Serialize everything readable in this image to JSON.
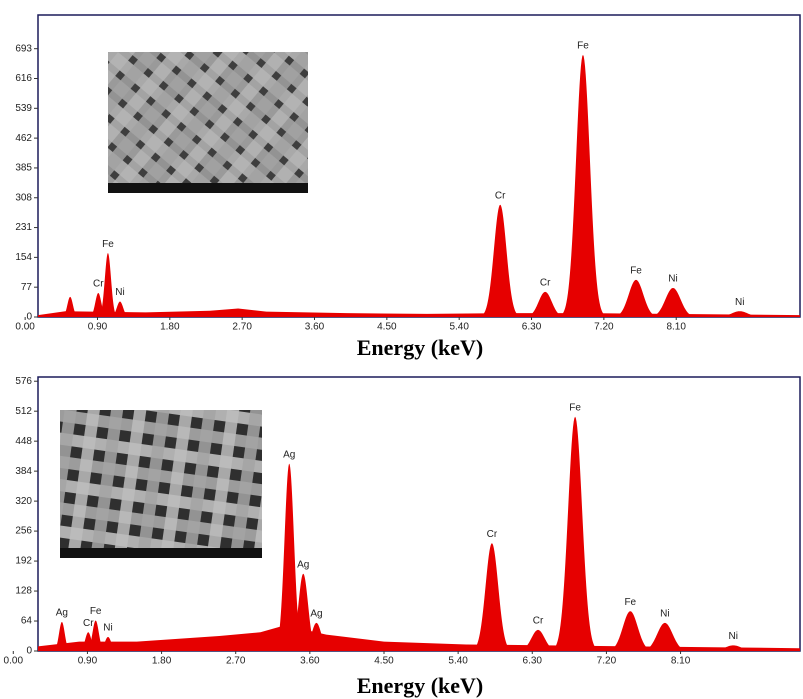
{
  "chart_data": [
    {
      "type": "spectrum",
      "x_label": "Energy (keV)",
      "color": "#e60000",
      "xlim": [
        0.16,
        9.64
      ],
      "ylim": [
        0,
        780
      ],
      "xticks": [
        {
          "value": 0,
          "label": "0.00"
        },
        {
          "value": 0.9,
          "label": "0.90"
        },
        {
          "value": 1.8,
          "label": "1.80"
        },
        {
          "value": 2.7,
          "label": "2.70"
        },
        {
          "value": 3.6,
          "label": "3.60"
        },
        {
          "value": 4.5,
          "label": "4.50"
        },
        {
          "value": 5.4,
          "label": "5.40"
        },
        {
          "value": 6.3,
          "label": "6.30"
        },
        {
          "value": 7.2,
          "label": "7.20"
        },
        {
          "value": 8.1,
          "label": "8.10"
        }
      ],
      "yticks": [
        0,
        77,
        154,
        231,
        308,
        385,
        462,
        539,
        616,
        693
      ],
      "background": {
        "x": [
          0.16,
          0.5,
          1.5,
          2.3,
          2.65,
          3.0,
          4.0,
          5.0,
          6.0,
          7.0,
          8.0,
          9.0,
          9.64
        ],
        "values": [
          5,
          15,
          12,
          16,
          22,
          14,
          10,
          8,
          10,
          10,
          8,
          6,
          5
        ]
      },
      "peaks": [
        {
          "energy": 0.56,
          "counts": 52
        },
        {
          "energy": 0.91,
          "counts": 62,
          "label": "Cr"
        },
        {
          "energy": 1.03,
          "counts": 165,
          "label": "Fe"
        },
        {
          "energy": 1.18,
          "counts": 40,
          "label": "Ni"
        },
        {
          "energy": 5.91,
          "counts": 290,
          "label": "Cr"
        },
        {
          "energy": 6.47,
          "counts": 65,
          "label": "Cr"
        },
        {
          "energy": 6.94,
          "counts": 677,
          "label": "Fe"
        },
        {
          "energy": 7.6,
          "counts": 96,
          "label": "Fe"
        },
        {
          "energy": 8.06,
          "counts": 75,
          "label": "Ni"
        },
        {
          "energy": 8.89,
          "counts": 15,
          "label": "Ni"
        }
      ]
    },
    {
      "type": "spectrum",
      "x_label": "Energy (keV)",
      "color": "#e60000",
      "xlim": [
        0.3,
        9.55
      ],
      "ylim": [
        0,
        585
      ],
      "xticks": [
        {
          "value": 0,
          "label": "0.00"
        },
        {
          "value": 0.9,
          "label": "0.90"
        },
        {
          "value": 1.8,
          "label": "1.80"
        },
        {
          "value": 2.7,
          "label": "2.70"
        },
        {
          "value": 3.6,
          "label": "3.60"
        },
        {
          "value": 4.5,
          "label": "4.50"
        },
        {
          "value": 5.4,
          "label": "5.40"
        },
        {
          "value": 6.3,
          "label": "6.30"
        },
        {
          "value": 7.2,
          "label": "7.20"
        },
        {
          "value": 8.1,
          "label": "8.10"
        }
      ],
      "yticks": [
        0,
        64,
        128,
        192,
        256,
        320,
        384,
        448,
        512,
        576
      ],
      "background": {
        "x": [
          0.3,
          0.8,
          1.5,
          2.5,
          3.0,
          3.3,
          3.8,
          4.5,
          5.5,
          6.5,
          7.5,
          8.5,
          9.55
        ],
        "values": [
          10,
          20,
          20,
          32,
          40,
          55,
          35,
          20,
          14,
          12,
          10,
          8,
          6
        ]
      },
      "peaks": [
        {
          "energy": 0.59,
          "counts": 62,
          "label": "Ag"
        },
        {
          "energy": 0.91,
          "counts": 40,
          "label": "Cr"
        },
        {
          "energy": 1.0,
          "counts": 65,
          "label": "Fe"
        },
        {
          "energy": 1.15,
          "counts": 30,
          "label": "Ni"
        },
        {
          "energy": 3.35,
          "counts": 400,
          "label": "Ag"
        },
        {
          "energy": 3.52,
          "counts": 165,
          "label": "Ag"
        },
        {
          "energy": 3.68,
          "counts": 60,
          "label": "Ag"
        },
        {
          "energy": 5.81,
          "counts": 230,
          "label": "Cr"
        },
        {
          "energy": 6.37,
          "counts": 45,
          "label": "Cr"
        },
        {
          "energy": 6.82,
          "counts": 500,
          "label": "Fe"
        },
        {
          "energy": 7.49,
          "counts": 85,
          "label": "Fe"
        },
        {
          "energy": 7.91,
          "counts": 60,
          "label": "Ni"
        },
        {
          "energy": 8.74,
          "counts": 12,
          "label": "Ni"
        }
      ]
    }
  ]
}
